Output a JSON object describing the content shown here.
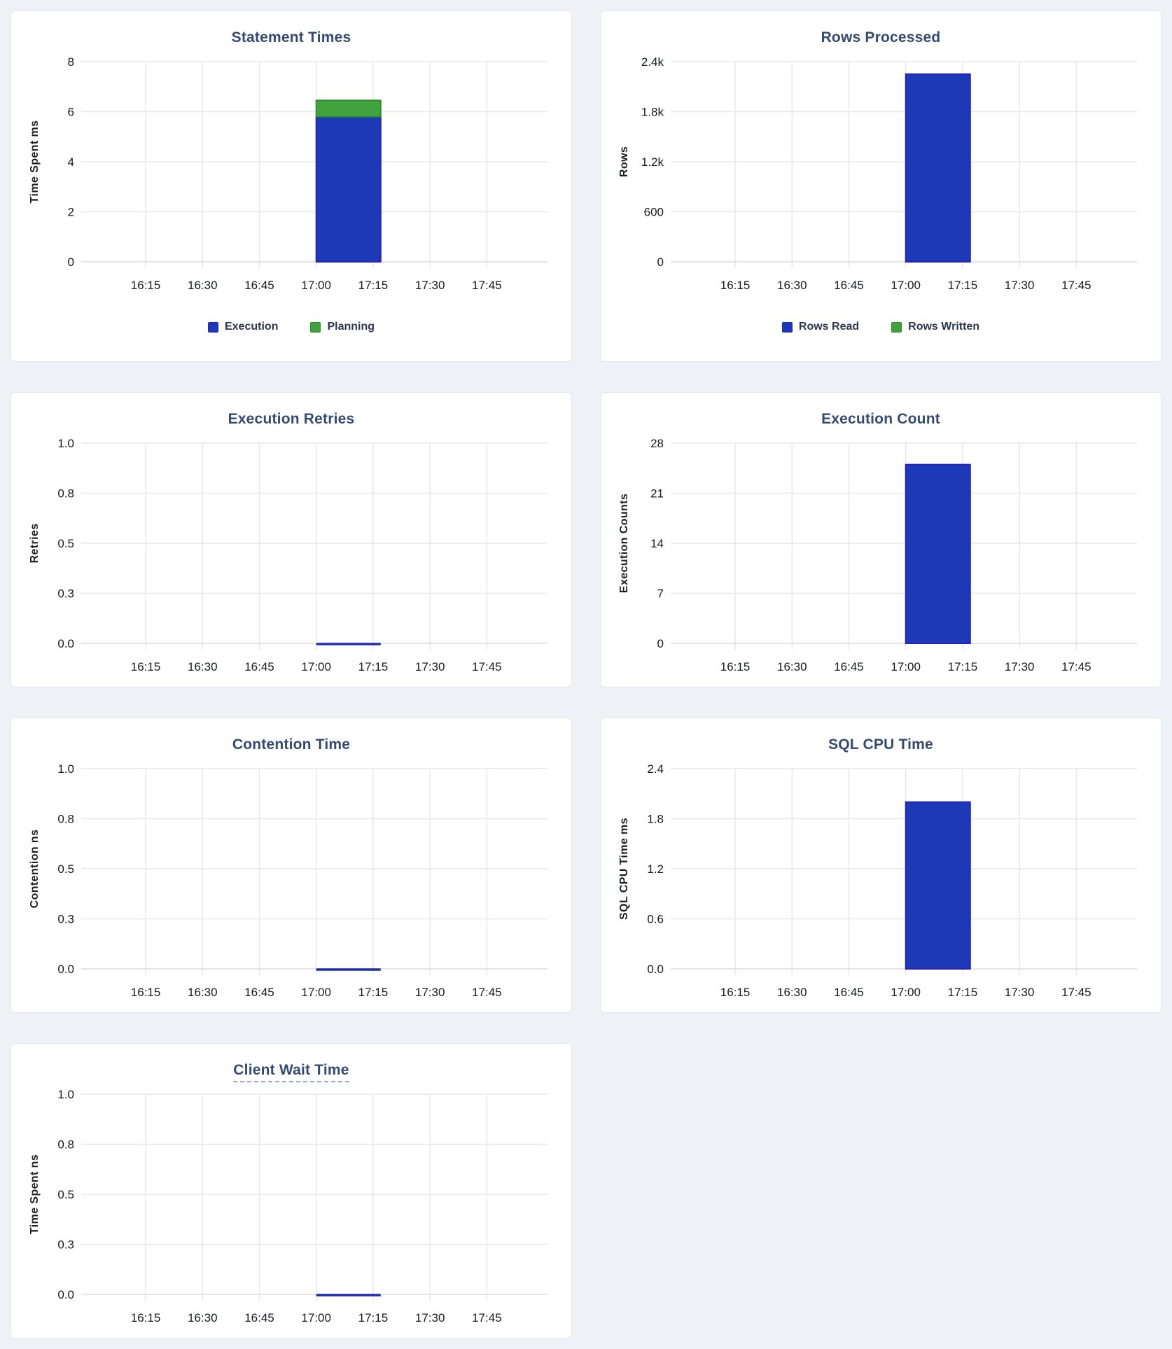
{
  "page": {
    "background_color": "#eef2f6",
    "card_background": "#ffffff",
    "card_border": "#e3e7ec"
  },
  "palette": {
    "blue": "#1c3ab8",
    "blue_stroke": "#2a1fc4",
    "green": "#41a33e",
    "green_stroke": "#2f8c2f",
    "series_line": "#202cb0",
    "grid_line": "#e8e8e8",
    "axis_line": "#d9dcdf",
    "title_color": "#344a72",
    "tick_label_color": "#17191e",
    "axis_label_color": "#1b1e24",
    "legend_label_color": "#2b3752",
    "title_underline_color": "#93a6c6"
  },
  "x_axis": {
    "tick_labels": [
      "16:15",
      "16:30",
      "16:45",
      "17:00",
      "17:15",
      "17:30",
      "17:45"
    ],
    "window": {
      "start": "15:58",
      "end": "18:01"
    },
    "data_interval": {
      "start": "17:00",
      "end": "17:17"
    }
  },
  "chart_data": [
    {
      "type": "bar",
      "stacked": true,
      "title": "Statement Times",
      "ylabel": "Time Spent ms",
      "y_max": 8,
      "y_ticks": [
        "0",
        "2",
        "4",
        "6",
        "8"
      ],
      "x_ticks": [
        "16:15",
        "16:30",
        "16:45",
        "17:00",
        "17:15",
        "17:30",
        "17:45"
      ],
      "data_interval": "17:00-17:17",
      "series": [
        {
          "name": "Execution",
          "color": "blue",
          "value": 5.8
        },
        {
          "name": "Planning",
          "color": "green",
          "value": 0.65
        }
      ],
      "legend": [
        {
          "label": "Execution",
          "color": "blue"
        },
        {
          "label": "Planning",
          "color": "green"
        }
      ],
      "legend_position": "bottom",
      "grid": true
    },
    {
      "type": "bar",
      "stacked": true,
      "title": "Rows Processed",
      "ylabel": "Rows",
      "y_max": 2400,
      "y_ticks": [
        "0",
        "600",
        "1.2k",
        "1.8k",
        "2.4k"
      ],
      "x_ticks": [
        "16:15",
        "16:30",
        "16:45",
        "17:00",
        "17:15",
        "17:30",
        "17:45"
      ],
      "data_interval": "17:00-17:17",
      "series": [
        {
          "name": "Rows Read",
          "color": "blue",
          "value": 2250
        },
        {
          "name": "Rows Written",
          "color": "green",
          "value": 0
        }
      ],
      "legend": [
        {
          "label": "Rows Read",
          "color": "blue"
        },
        {
          "label": "Rows Written",
          "color": "green"
        }
      ],
      "legend_position": "bottom",
      "grid": true
    },
    {
      "type": "line",
      "title": "Execution Retries",
      "ylabel": "Retries",
      "y_max": 1,
      "y_ticks": [
        "0.0",
        "0.3",
        "0.5",
        "0.8",
        "1.0"
      ],
      "x_ticks": [
        "16:15",
        "16:30",
        "16:45",
        "17:00",
        "17:15",
        "17:30",
        "17:45"
      ],
      "data_interval": "17:00-17:17",
      "series": [
        {
          "name": "Retries",
          "color": "series_line",
          "value": 0
        }
      ],
      "grid": true
    },
    {
      "type": "bar",
      "stacked": false,
      "title": "Execution Count",
      "ylabel": "Execution Counts",
      "y_max": 28,
      "y_ticks": [
        "0",
        "7",
        "14",
        "21",
        "28"
      ],
      "x_ticks": [
        "16:15",
        "16:30",
        "16:45",
        "17:00",
        "17:15",
        "17:30",
        "17:45"
      ],
      "data_interval": "17:00-17:17",
      "series": [
        {
          "name": "Execution Count",
          "color": "blue",
          "value": 25
        }
      ],
      "grid": true
    },
    {
      "type": "line",
      "title": "Contention Time",
      "ylabel": "Contention ns",
      "y_max": 1,
      "y_ticks": [
        "0.0",
        "0.3",
        "0.5",
        "0.8",
        "1.0"
      ],
      "x_ticks": [
        "16:15",
        "16:30",
        "16:45",
        "17:00",
        "17:15",
        "17:30",
        "17:45"
      ],
      "data_interval": "17:00-17:17",
      "series": [
        {
          "name": "Contention",
          "color": "series_line",
          "value": 0
        }
      ],
      "grid": true
    },
    {
      "type": "bar",
      "stacked": false,
      "title": "SQL CPU Time",
      "ylabel": "SQL CPU Time ms",
      "y_max": 2.4,
      "y_ticks": [
        "0.0",
        "0.6",
        "1.2",
        "1.8",
        "2.4"
      ],
      "x_ticks": [
        "16:15",
        "16:30",
        "16:45",
        "17:00",
        "17:15",
        "17:30",
        "17:45"
      ],
      "data_interval": "17:00-17:17",
      "series": [
        {
          "name": "SQL CPU Time",
          "color": "blue",
          "value": 2.0
        }
      ],
      "grid": true
    },
    {
      "type": "line",
      "title": "Client Wait Time",
      "title_tooltip_underline": true,
      "ylabel": "Time Spent ns",
      "y_max": 1,
      "y_ticks": [
        "0.0",
        "0.3",
        "0.5",
        "0.8",
        "1.0"
      ],
      "x_ticks": [
        "16:15",
        "16:30",
        "16:45",
        "17:00",
        "17:15",
        "17:30",
        "17:45"
      ],
      "data_interval": "17:00-17:17",
      "series": [
        {
          "name": "Client Wait",
          "color": "series_line",
          "value": 0
        }
      ],
      "grid": true
    }
  ]
}
